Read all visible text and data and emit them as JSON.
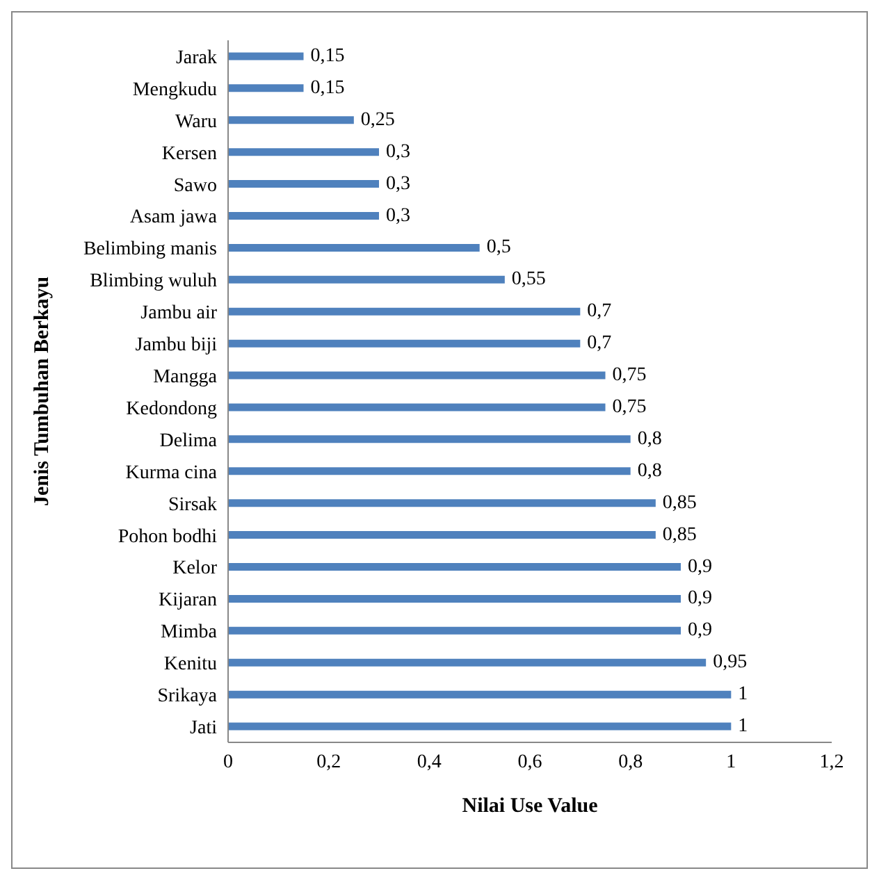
{
  "chart_data": {
    "type": "bar",
    "orientation": "horizontal",
    "xlabel": "Nilai Use Value",
    "ylabel": "Jenis Tumbuhan Berkayu",
    "categories": [
      "Jarak",
      "Mengkudu",
      "Waru",
      "Kersen",
      "Sawo",
      "Asam jawa",
      "Belimbing manis",
      "Blimbing wuluh",
      "Jambu air",
      "Jambu biji",
      "Mangga",
      "Kedondong",
      "Delima",
      "Kurma cina",
      "Sirsak",
      "Pohon bodhi",
      "Kelor",
      "Kijaran",
      "Mimba",
      "Kenitu",
      "Srikaya",
      "Jati"
    ],
    "values": [
      0.15,
      0.15,
      0.25,
      0.3,
      0.3,
      0.3,
      0.5,
      0.55,
      0.7,
      0.7,
      0.75,
      0.75,
      0.8,
      0.8,
      0.85,
      0.85,
      0.9,
      0.9,
      0.9,
      0.95,
      1,
      1
    ],
    "value_labels": [
      "0,15",
      "0,15",
      "0,25",
      "0,3",
      "0,3",
      "0,3",
      "0,5",
      "0,55",
      "0,7",
      "0,7",
      "0,75",
      "0,75",
      "0,8",
      "0,8",
      "0,85",
      "0,85",
      "0,9",
      "0,9",
      "0,9",
      "0,95",
      "1",
      "1"
    ],
    "color": "#4f81bd",
    "xlim": [
      0,
      1.2
    ],
    "xticks": [
      0,
      {
        "value": 0.2,
        "label": "0,2"
      },
      {
        "value": 0.4,
        "label": "0,4"
      },
      {
        "value": 0.6,
        "label": "0,6"
      },
      {
        "value": 0.8,
        "label": "0,8"
      },
      1,
      {
        "value": 1.2,
        "label": "1,2"
      }
    ],
    "grid": false,
    "legend": false
  }
}
